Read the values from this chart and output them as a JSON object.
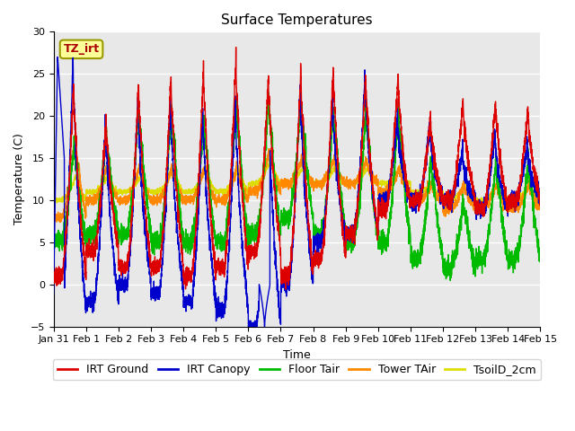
{
  "title": "Surface Temperatures",
  "ylabel": "Temperature (C)",
  "xlabel": "Time",
  "ylim": [
    -5,
    30
  ],
  "x_tick_labels": [
    "Jan 31",
    "Feb 1",
    "Feb 2",
    "Feb 3",
    "Feb 4",
    "Feb 5",
    "Feb 6",
    "Feb 7",
    "Feb 8",
    "Feb 9",
    "Feb 10",
    "Feb 11",
    "Feb 12",
    "Feb 13",
    "Feb 14",
    "Feb 15"
  ],
  "series_colors": {
    "IRT Ground": "#dd0000",
    "IRT Canopy": "#0000cc",
    "Floor Tair": "#00bb00",
    "Tower TAir": "#ff8800",
    "TsoilD_2cm": "#dddd00"
  },
  "tz_label": "TZ_irt",
  "tz_box_facecolor": "#ffff99",
  "tz_box_edgecolor": "#999900",
  "background_color": "#e8e8e8",
  "grid_color": "#ffffff",
  "title_fontsize": 11,
  "axis_label_fontsize": 9,
  "tick_fontsize": 8,
  "legend_fontsize": 9
}
